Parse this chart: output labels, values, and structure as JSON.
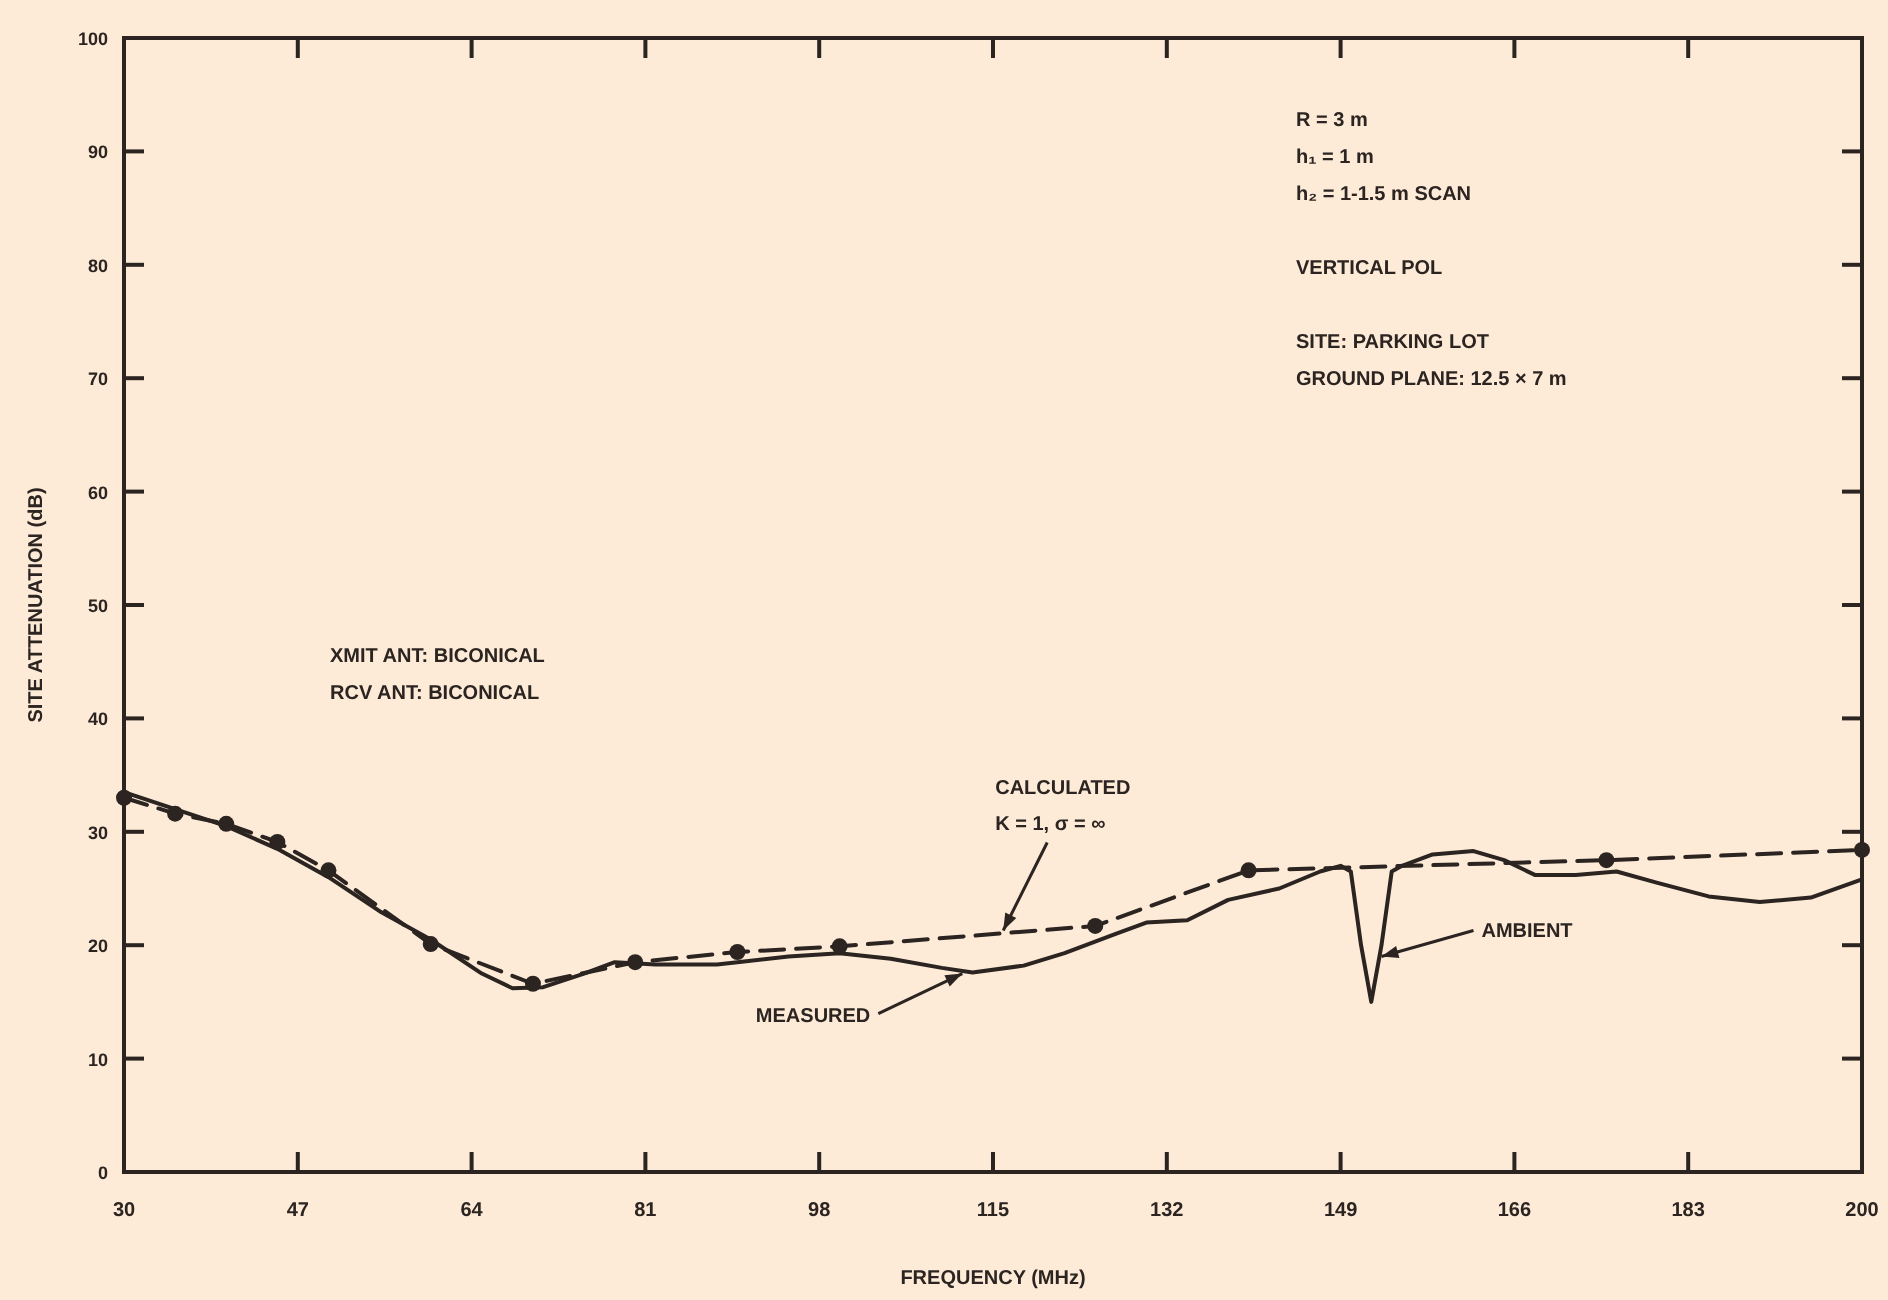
{
  "chart_data": {
    "type": "line",
    "xlabel": "FREQUENCY (MHz)",
    "ylabel": "SITE ATTENUATION (dB)",
    "xlim": [
      30,
      200
    ],
    "xticks": [
      30,
      47,
      64,
      81,
      98,
      115,
      132,
      149,
      166,
      183,
      200
    ],
    "ylim": [
      0,
      100
    ],
    "yticks": [
      0,
      10,
      20,
      30,
      40,
      50,
      60,
      70,
      80,
      90,
      100
    ],
    "grid": false,
    "series": [
      {
        "color": "#2b2420",
        "line_style": "solid",
        "marker": "none",
        "x": [
          30,
          35,
          40,
          45,
          50,
          55,
          60,
          65,
          68,
          71,
          75,
          78,
          82,
          88,
          90,
          95,
          100,
          105,
          110,
          113,
          118,
          122,
          127,
          130,
          134,
          138,
          143,
          147,
          149,
          150,
          151,
          152,
          153,
          154,
          155,
          158,
          162,
          165,
          168,
          172,
          176,
          180,
          185,
          190,
          195,
          200
        ],
        "values": [
          33.5,
          32,
          30.5,
          28.5,
          26,
          23,
          20.5,
          17.5,
          16.2,
          16.3,
          17.5,
          18.5,
          18.3,
          18.3,
          18.5,
          19,
          19.3,
          18.8,
          18,
          17.6,
          18.2,
          19.3,
          21,
          22,
          22.2,
          24,
          25,
          26.5,
          27,
          26.5,
          20,
          15,
          20,
          26.5,
          27,
          28,
          28.3,
          27.5,
          26.2,
          26.2,
          26.5,
          25.5,
          24.3,
          23.8,
          24.2,
          25.8
        ]
      },
      {
        "color": "#2b2420",
        "line_style": "dashed",
        "marker": "circle",
        "x": [
          30,
          35,
          40,
          45,
          50,
          60,
          70,
          80,
          90,
          100,
          125,
          140,
          175,
          200
        ],
        "values": [
          33,
          31.6,
          30.7,
          29.1,
          26.6,
          20.1,
          16.6,
          18.5,
          19.4,
          19.9,
          21.7,
          26.6,
          27.5,
          28.4
        ]
      }
    ],
    "annotations": [
      "R = 3 m\nh₁ = 1 m\nh₂ = 1-1.5 m SCAN\n\nVERTICAL POL\n\nSITE: PARKING LOT\nGROUND PLANE: 12.5 × 7 m",
      "XMIT ANT: BICONICAL\nRCV ANT: BICONICAL",
      {
        "text": "CALCULATED\nK = 1, σ = ∞",
        "x": 116,
        "y": 21.3
      },
      {
        "text": "MEASURED",
        "x": 112,
        "y": 17.5
      },
      {
        "text": "AMBIENT",
        "x": 153,
        "y": 19
      }
    ]
  }
}
